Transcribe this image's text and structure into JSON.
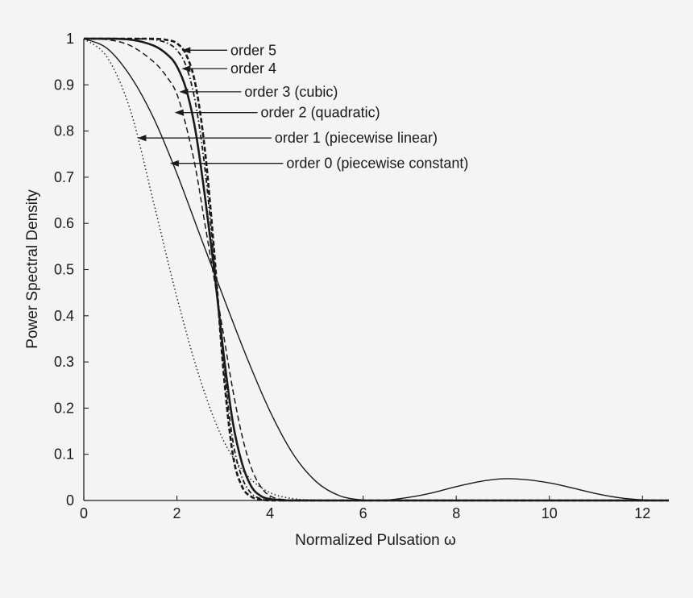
{
  "chart_data": {
    "type": "line",
    "title": "",
    "xlabel": "Normalized Pulsation ω",
    "ylabel": "Power Spectral Density",
    "xlim": [
      0,
      12.566
    ],
    "ylim": [
      0,
      1
    ],
    "xticks": [
      0,
      2,
      4,
      6,
      8,
      10,
      12
    ],
    "yticks": [
      0,
      0.1,
      0.2,
      0.3,
      0.4,
      0.5,
      0.6,
      0.7,
      0.8,
      0.9,
      1
    ],
    "grid": false,
    "legend": "inline arrow annotations",
    "series": [
      {
        "name": "order 0 (piecewise constant)",
        "style": "solid-thin",
        "x": [
          0,
          0.5,
          1,
          1.5,
          2,
          2.5,
          3,
          3.5,
          4,
          4.5,
          5,
          5.5,
          6,
          6.283,
          6.5,
          7,
          7.5,
          8,
          8.5,
          9,
          9.5,
          10,
          10.5,
          11,
          11.5,
          12,
          12.566
        ],
        "y": [
          1,
          0.979,
          0.919,
          0.828,
          0.708,
          0.573,
          0.44,
          0.31,
          0.193,
          0.1,
          0.04,
          0.01,
          0.0008,
          0,
          0.0006,
          0.007,
          0.017,
          0.03,
          0.041,
          0.047,
          0.045,
          0.038,
          0.027,
          0.015,
          0.006,
          0.0014,
          0
        ]
      },
      {
        "name": "order 1 (piecewise linear)",
        "style": "dotted",
        "x": [
          0,
          0.5,
          1,
          1.5,
          2,
          2.5,
          3,
          3.5,
          4,
          4.5,
          5,
          6,
          12.566
        ],
        "y": [
          1,
          0.96,
          0.845,
          0.645,
          0.44,
          0.262,
          0.13,
          0.055,
          0.017,
          0.004,
          0.001,
          0,
          0
        ]
      },
      {
        "name": "order 2 (quadratic)",
        "style": "dashed",
        "x": [
          0,
          0.5,
          1,
          1.5,
          1.8,
          2,
          2.2,
          2.4,
          2.6,
          2.8,
          3,
          3.2,
          3.4,
          3.6,
          3.8,
          4,
          4.3,
          5,
          12.566
        ],
        "y": [
          1,
          0.998,
          0.985,
          0.95,
          0.915,
          0.88,
          0.81,
          0.72,
          0.6,
          0.48,
          0.36,
          0.24,
          0.14,
          0.07,
          0.03,
          0.01,
          0.002,
          0,
          0
        ]
      },
      {
        "name": "order 3 (cubic)",
        "style": "solid-thick",
        "x": [
          0,
          0.5,
          1,
          1.5,
          1.8,
          2,
          2.2,
          2.4,
          2.6,
          2.8,
          3,
          3.2,
          3.4,
          3.6,
          3.8,
          4,
          4.3,
          5,
          12.566
        ],
        "y": [
          1,
          1,
          0.998,
          0.985,
          0.965,
          0.94,
          0.89,
          0.8,
          0.66,
          0.5,
          0.32,
          0.17,
          0.08,
          0.03,
          0.01,
          0.003,
          0.001,
          0,
          0
        ]
      },
      {
        "name": "order 4",
        "style": "dash-dot",
        "x": [
          0,
          0.5,
          1,
          1.5,
          1.8,
          2,
          2.2,
          2.4,
          2.6,
          2.8,
          3,
          3.2,
          3.4,
          3.6,
          3.8,
          4,
          4.3,
          5,
          12.566
        ],
        "y": [
          1,
          1,
          1,
          0.998,
          0.99,
          0.975,
          0.94,
          0.86,
          0.72,
          0.52,
          0.3,
          0.13,
          0.05,
          0.015,
          0.004,
          0.001,
          0,
          0,
          0
        ]
      },
      {
        "name": "order 5",
        "style": "dashed-thick",
        "x": [
          0,
          0.5,
          1,
          1.5,
          1.8,
          2,
          2.2,
          2.4,
          2.6,
          2.8,
          3,
          3.2,
          3.4,
          3.6,
          3.8,
          4,
          4.3,
          5,
          12.566
        ],
        "y": [
          1,
          1,
          1,
          1,
          0.997,
          0.99,
          0.965,
          0.9,
          0.76,
          0.54,
          0.28,
          0.1,
          0.03,
          0.008,
          0.002,
          0,
          0,
          0,
          0
        ]
      }
    ],
    "annotations": [
      {
        "text": "order 5",
        "label_x": 3.15,
        "label_y": 0.975,
        "arrow_to_x": 2.1,
        "arrow_to_y": 0.975
      },
      {
        "text": "order 4",
        "label_x": 3.15,
        "label_y": 0.935,
        "arrow_to_x": 2.1,
        "arrow_to_y": 0.935
      },
      {
        "text": "order 3 (cubic)",
        "label_x": 3.45,
        "label_y": 0.885,
        "arrow_to_x": 2.05,
        "arrow_to_y": 0.885
      },
      {
        "text": "order 2 (quadratic)",
        "label_x": 3.8,
        "label_y": 0.84,
        "arrow_to_x": 1.95,
        "arrow_to_y": 0.84
      },
      {
        "text": "order 1 (piecewise linear)",
        "label_x": 4.1,
        "label_y": 0.785,
        "arrow_to_x": 1.15,
        "arrow_to_y": 0.785
      },
      {
        "text": "order 0 (piecewise constant)",
        "label_x": 4.35,
        "label_y": 0.73,
        "arrow_to_x": 1.85,
        "arrow_to_y": 0.73
      }
    ]
  }
}
